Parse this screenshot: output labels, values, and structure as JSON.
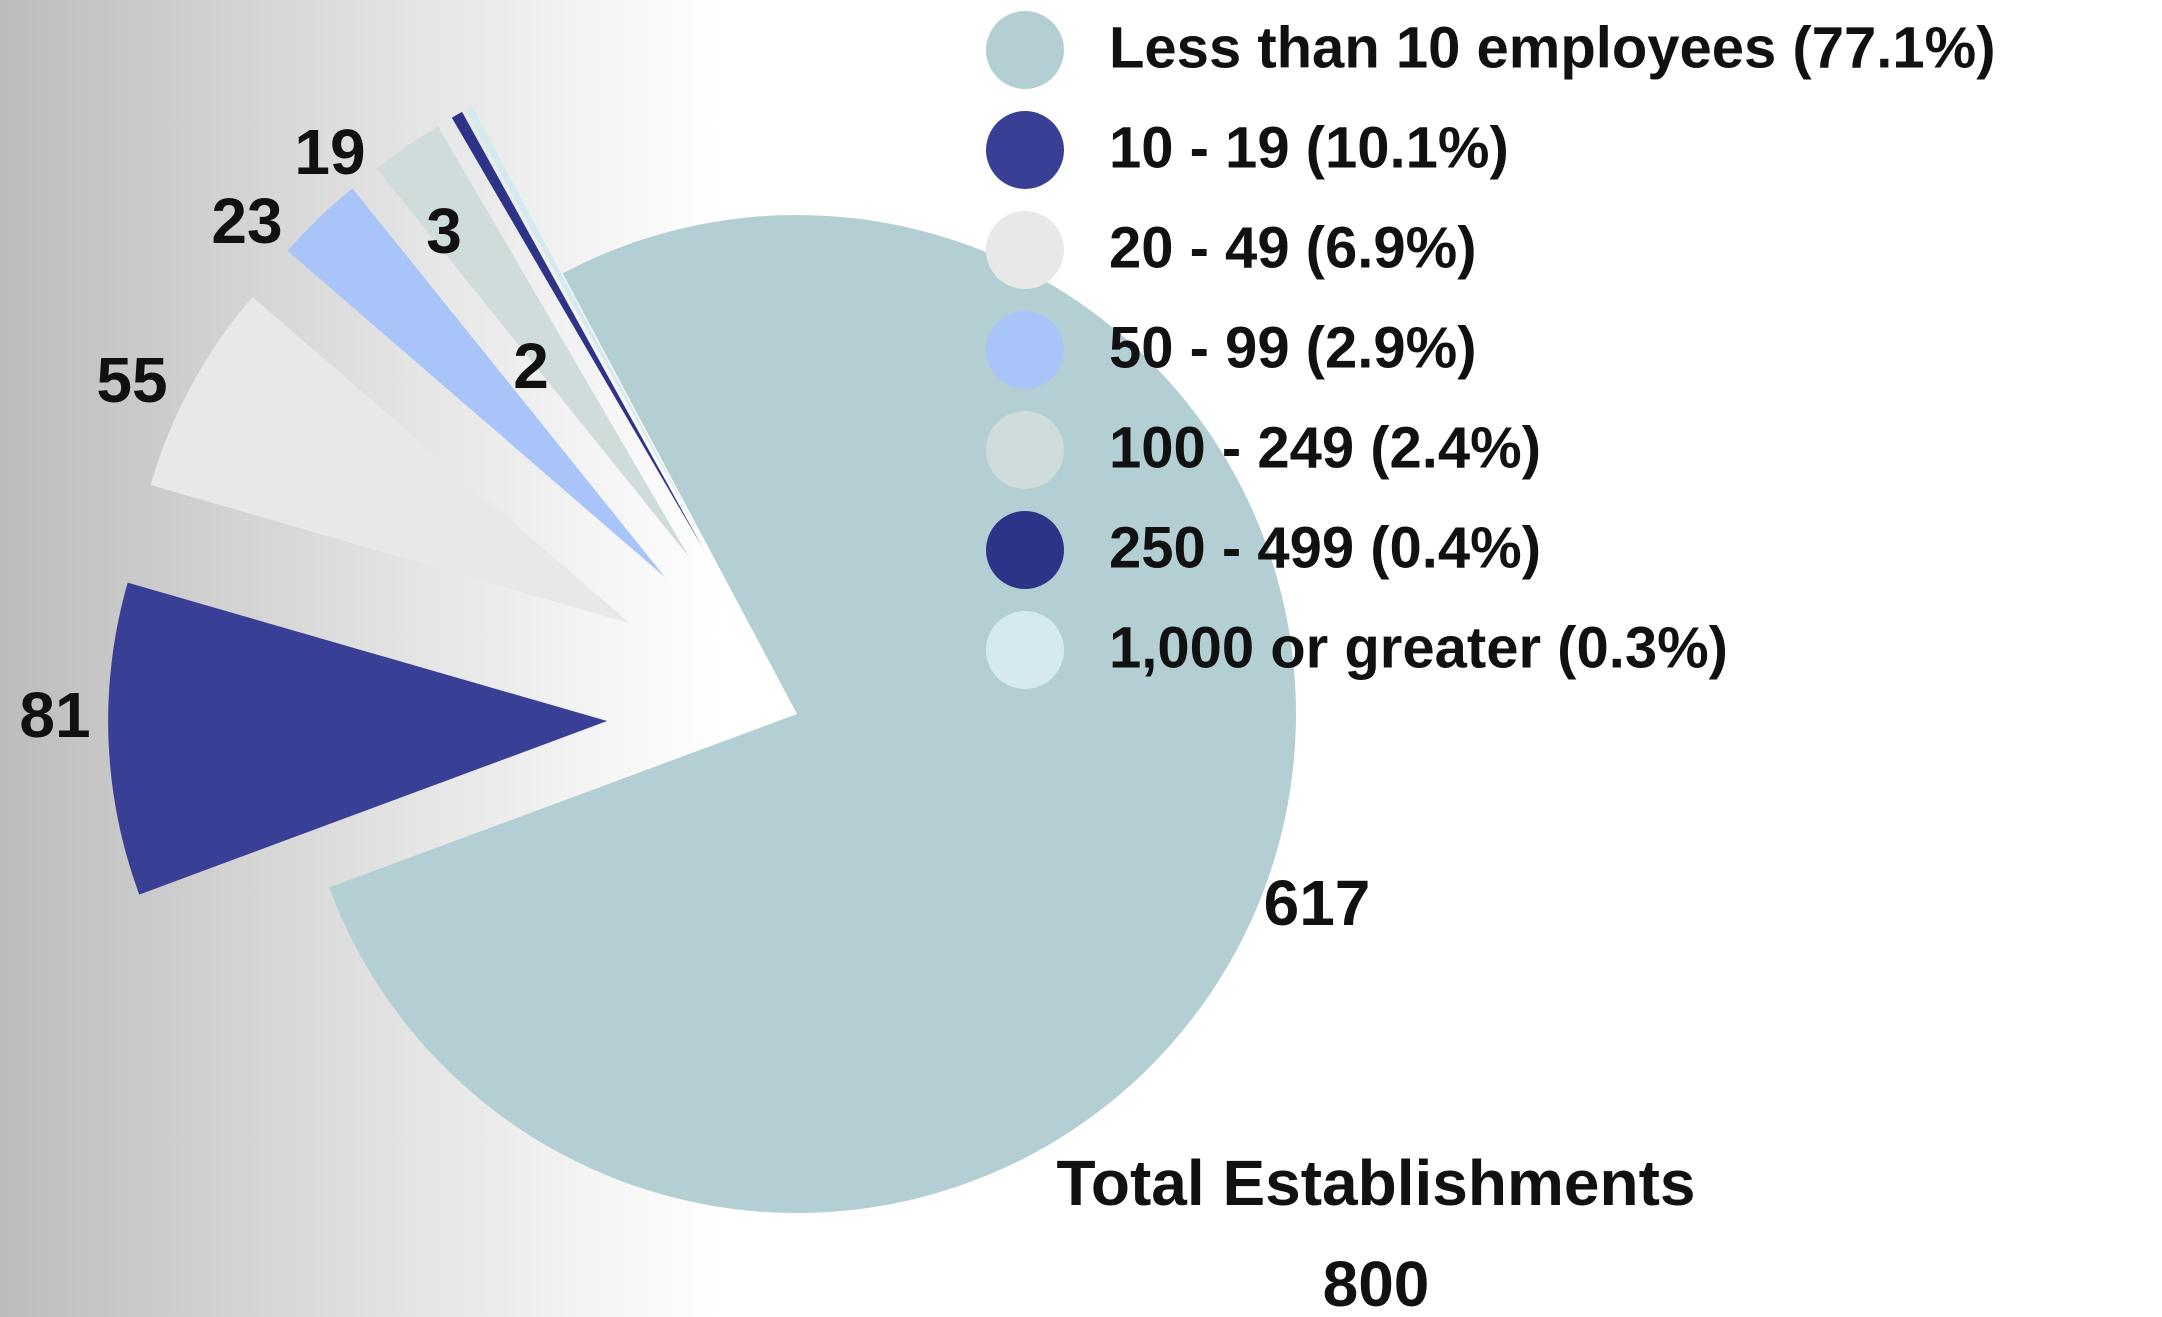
{
  "chart_data": {
    "type": "pie",
    "categories": [
      "Less than 10 employees (77.1%)",
      "10 - 19 (10.1%)",
      "20 - 49 (6.9%)",
      "50 - 99 (2.9%)",
      "100 - 249 (2.4%)",
      "250 - 499 (0.4%)",
      "1,000 or greater (0.3%)"
    ],
    "values": [
      617,
      81,
      55,
      23,
      19,
      3,
      2
    ],
    "colors": [
      "#b3cfd3",
      "#3a3f96",
      "#e8e8e8",
      "#a8c4f8",
      "#d0dcdc",
      "#2d3488",
      "#d4eaee"
    ],
    "total_title": "Total Establishments",
    "total": 800
  }
}
